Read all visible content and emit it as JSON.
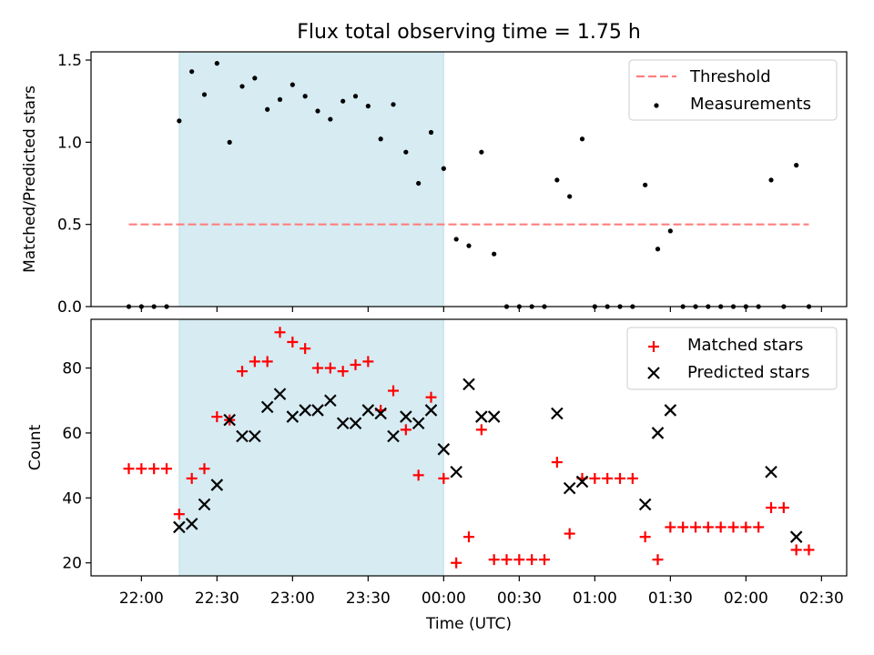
{
  "title": "Flux total observing time = 1.75 h",
  "colors": {
    "shade": "#add8e6",
    "threshold": "#ff7f7f",
    "matched": "#ff0000",
    "predicted": "#000000",
    "measurement": "#000000"
  },
  "chart_data": [
    {
      "type": "scatter",
      "ylabel": "Matched/Predicted stars",
      "ylim": [
        0,
        1.55
      ],
      "yticks": [
        "0.0",
        "0.5",
        "1.0",
        "1.5"
      ],
      "ytick_values": [
        0,
        0.5,
        1.0,
        1.5
      ],
      "shaded_region": {
        "start": "22:15",
        "end": "00:00"
      },
      "legend_position": "upper right",
      "legend": [
        "Threshold",
        "Measurements"
      ],
      "threshold": {
        "name": "Threshold",
        "value": 0.5,
        "x_start": "21:55",
        "x_end": "02:25",
        "style": "dashed"
      },
      "series": [
        {
          "name": "Measurements",
          "marker": "dot",
          "points": [
            [
              "21:55",
              0
            ],
            [
              "22:00",
              0
            ],
            [
              "22:05",
              0
            ],
            [
              "22:10",
              0
            ],
            [
              "22:15",
              1.13
            ],
            [
              "22:20",
              1.43
            ],
            [
              "22:25",
              1.29
            ],
            [
              "22:30",
              1.48
            ],
            [
              "22:35",
              1.0
            ],
            [
              "22:40",
              1.34
            ],
            [
              "22:45",
              1.39
            ],
            [
              "22:50",
              1.2
            ],
            [
              "22:55",
              1.26
            ],
            [
              "23:00",
              1.35
            ],
            [
              "23:05",
              1.28
            ],
            [
              "23:10",
              1.19
            ],
            [
              "23:15",
              1.14
            ],
            [
              "23:20",
              1.25
            ],
            [
              "23:25",
              1.28
            ],
            [
              "23:30",
              1.22
            ],
            [
              "23:35",
              1.02
            ],
            [
              "23:40",
              1.23
            ],
            [
              "23:45",
              0.94
            ],
            [
              "23:50",
              0.75
            ],
            [
              "23:55",
              1.06
            ],
            [
              "00:00",
              0.84
            ],
            [
              "00:05",
              0.41
            ],
            [
              "00:10",
              0.37
            ],
            [
              "00:15",
              0.94
            ],
            [
              "00:20",
              0.32
            ],
            [
              "00:25",
              0
            ],
            [
              "00:30",
              0
            ],
            [
              "00:35",
              0
            ],
            [
              "00:40",
              0
            ],
            [
              "00:45",
              0.77
            ],
            [
              "00:50",
              0.67
            ],
            [
              "00:55",
              1.02
            ],
            [
              "01:00",
              0
            ],
            [
              "01:05",
              0
            ],
            [
              "01:10",
              0
            ],
            [
              "01:15",
              0
            ],
            [
              "01:20",
              0.74
            ],
            [
              "01:25",
              0.35
            ],
            [
              "01:30",
              0.46
            ],
            [
              "01:35",
              0
            ],
            [
              "01:40",
              0
            ],
            [
              "01:45",
              0
            ],
            [
              "01:50",
              0
            ],
            [
              "01:55",
              0
            ],
            [
              "02:00",
              0
            ],
            [
              "02:05",
              0
            ],
            [
              "02:10",
              0.77
            ],
            [
              "02:15",
              0
            ],
            [
              "02:20",
              0.86
            ],
            [
              "02:25",
              0
            ]
          ]
        }
      ]
    },
    {
      "type": "scatter",
      "xlabel": "Time (UTC)",
      "ylabel": "Count",
      "ylim": [
        16,
        95
      ],
      "yticks": [
        "20",
        "40",
        "60",
        "80"
      ],
      "ytick_values": [
        20,
        40,
        60,
        80
      ],
      "xlim": [
        "21:40",
        "02:40"
      ],
      "xticks": [
        "22:00",
        "22:30",
        "23:00",
        "23:30",
        "00:00",
        "00:30",
        "01:00",
        "01:30",
        "02:00",
        "02:30"
      ],
      "shaded_region": {
        "start": "22:15",
        "end": "00:00"
      },
      "legend_position": "upper right",
      "legend": [
        "Matched stars",
        "Predicted stars"
      ],
      "series": [
        {
          "name": "Matched stars",
          "marker": "plus",
          "points": [
            [
              "21:55",
              49
            ],
            [
              "22:00",
              49
            ],
            [
              "22:05",
              49
            ],
            [
              "22:10",
              49
            ],
            [
              "22:15",
              35
            ],
            [
              "22:20",
              46
            ],
            [
              "22:25",
              49
            ],
            [
              "22:30",
              65
            ],
            [
              "22:35",
              64
            ],
            [
              "22:40",
              79
            ],
            [
              "22:45",
              82
            ],
            [
              "22:50",
              82
            ],
            [
              "22:55",
              91
            ],
            [
              "23:00",
              88
            ],
            [
              "23:05",
              86
            ],
            [
              "23:10",
              80
            ],
            [
              "23:15",
              80
            ],
            [
              "23:20",
              79
            ],
            [
              "23:25",
              81
            ],
            [
              "23:30",
              82
            ],
            [
              "23:35",
              67
            ],
            [
              "23:40",
              73
            ],
            [
              "23:45",
              61
            ],
            [
              "23:50",
              47
            ],
            [
              "23:55",
              71
            ],
            [
              "00:00",
              46
            ],
            [
              "00:05",
              20
            ],
            [
              "00:10",
              28
            ],
            [
              "00:15",
              61
            ],
            [
              "00:20",
              21
            ],
            [
              "00:25",
              21
            ],
            [
              "00:30",
              21
            ],
            [
              "00:35",
              21
            ],
            [
              "00:40",
              21
            ],
            [
              "00:45",
              51
            ],
            [
              "00:50",
              29
            ],
            [
              "00:55",
              46
            ],
            [
              "01:00",
              46
            ],
            [
              "01:05",
              46
            ],
            [
              "01:10",
              46
            ],
            [
              "01:15",
              46
            ],
            [
              "01:20",
              28
            ],
            [
              "01:25",
              21
            ],
            [
              "01:30",
              31
            ],
            [
              "01:35",
              31
            ],
            [
              "01:40",
              31
            ],
            [
              "01:45",
              31
            ],
            [
              "01:50",
              31
            ],
            [
              "01:55",
              31
            ],
            [
              "02:00",
              31
            ],
            [
              "02:05",
              31
            ],
            [
              "02:10",
              37
            ],
            [
              "02:15",
              37
            ],
            [
              "02:20",
              24
            ],
            [
              "02:25",
              24
            ]
          ]
        },
        {
          "name": "Predicted stars",
          "marker": "x",
          "points": [
            [
              "22:15",
              31
            ],
            [
              "22:20",
              32
            ],
            [
              "22:25",
              38
            ],
            [
              "22:30",
              44
            ],
            [
              "22:35",
              64
            ],
            [
              "22:40",
              59
            ],
            [
              "22:45",
              59
            ],
            [
              "22:50",
              68
            ],
            [
              "22:55",
              72
            ],
            [
              "23:00",
              65
            ],
            [
              "23:05",
              67
            ],
            [
              "23:10",
              67
            ],
            [
              "23:15",
              70
            ],
            [
              "23:20",
              63
            ],
            [
              "23:25",
              63
            ],
            [
              "23:30",
              67
            ],
            [
              "23:35",
              66
            ],
            [
              "23:40",
              59
            ],
            [
              "23:45",
              65
            ],
            [
              "23:50",
              63
            ],
            [
              "23:55",
              67
            ],
            [
              "00:00",
              55
            ],
            [
              "00:05",
              48
            ],
            [
              "00:10",
              75
            ],
            [
              "00:15",
              65
            ],
            [
              "00:20",
              65
            ],
            [
              "00:45",
              66
            ],
            [
              "00:50",
              43
            ],
            [
              "00:55",
              45
            ],
            [
              "01:20",
              38
            ],
            [
              "01:25",
              60
            ],
            [
              "01:30",
              67
            ],
            [
              "02:10",
              48
            ],
            [
              "02:20",
              28
            ]
          ]
        }
      ]
    }
  ]
}
